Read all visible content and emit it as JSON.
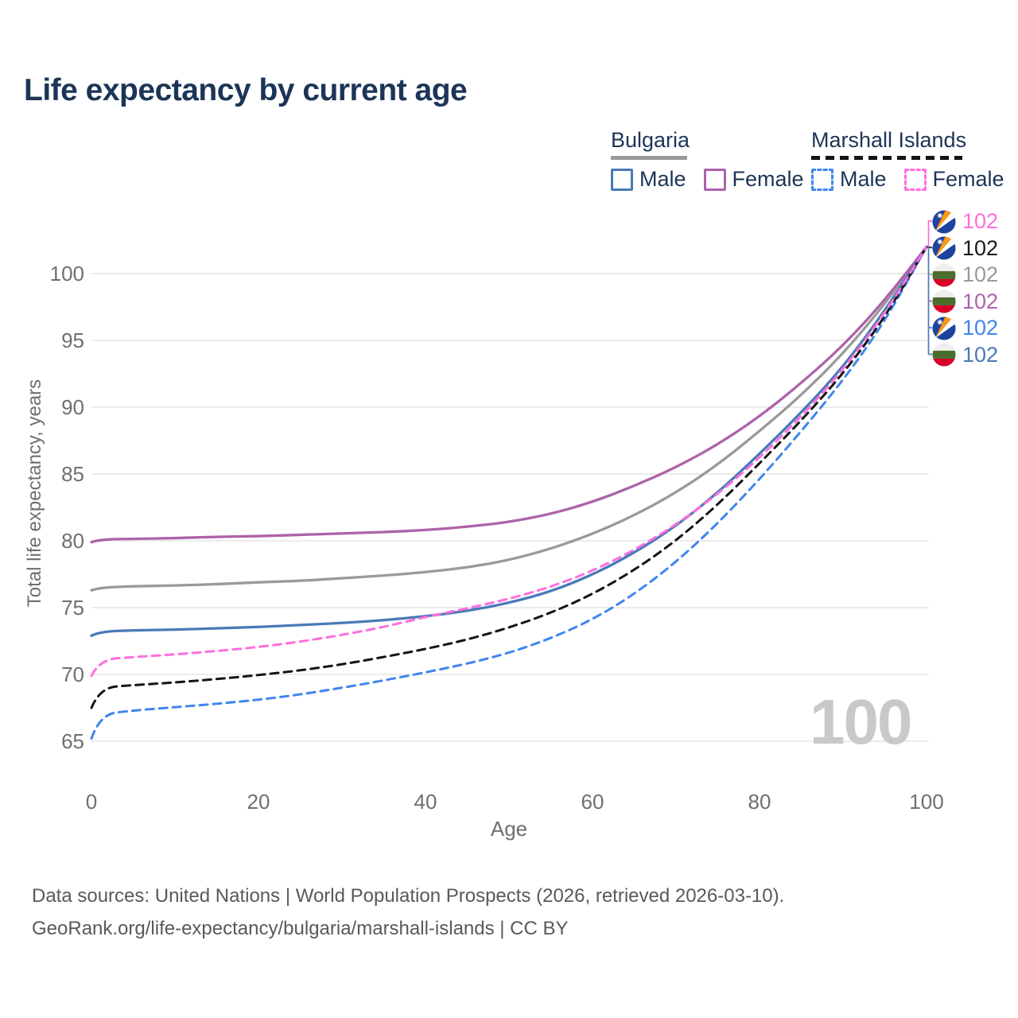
{
  "title": "Life expectancy by current age",
  "legend": {
    "groups": [
      {
        "title": "Bulgaria",
        "line_style": "solid",
        "line_color": "#9a9a9a",
        "items": [
          {
            "label": "Male",
            "color": "#4a7ab8",
            "dashed": false
          },
          {
            "label": "Female",
            "color": "#ae62aa",
            "dashed": false
          }
        ]
      },
      {
        "title": "Marshall Islands",
        "line_style": "dashed",
        "line_color": "#141414",
        "items": [
          {
            "label": "Male",
            "color": "#3f86ee",
            "dashed": true
          },
          {
            "label": "Female",
            "color": "#ff6ede",
            "dashed": true
          }
        ]
      }
    ]
  },
  "chart_data": {
    "type": "line",
    "title": "Life expectancy by current age",
    "xlabel": "Age",
    "ylabel": "Total life expectancy, years",
    "xlim": [
      0,
      100
    ],
    "ylim": [
      65,
      103
    ],
    "xticks": [
      0,
      20,
      40,
      60,
      80,
      100
    ],
    "yticks": [
      100,
      95,
      90,
      85,
      80,
      75,
      70,
      65
    ],
    "grid": "horizontal",
    "legend_position": "top-right",
    "x": [
      0,
      1,
      5,
      10,
      15,
      20,
      25,
      30,
      35,
      40,
      45,
      50,
      55,
      60,
      65,
      70,
      75,
      80,
      85,
      90,
      95,
      100
    ],
    "series": [
      {
        "name": "Bulgaria (both sexes)",
        "color": "#9a9a9a",
        "dash": false,
        "values": [
          76.3,
          76.5,
          76.6,
          76.65,
          76.75,
          76.9,
          77.0,
          77.2,
          77.4,
          77.65,
          78.0,
          78.55,
          79.4,
          80.5,
          81.9,
          83.6,
          85.7,
          88.2,
          90.9,
          94.0,
          97.7,
          102
        ]
      },
      {
        "name": "Bulgaria Female",
        "color": "#ae62aa",
        "dash": false,
        "values": [
          79.9,
          80.1,
          80.15,
          80.2,
          80.3,
          80.35,
          80.45,
          80.55,
          80.65,
          80.8,
          81.05,
          81.4,
          82.0,
          82.9,
          84.1,
          85.5,
          87.2,
          89.3,
          91.8,
          94.6,
          98.0,
          102
        ]
      },
      {
        "name": "Bulgaria Male",
        "color": "#4a7ab8",
        "dash": false,
        "values": [
          72.9,
          73.2,
          73.3,
          73.35,
          73.45,
          73.55,
          73.7,
          73.85,
          74.05,
          74.35,
          74.75,
          75.35,
          76.2,
          77.45,
          79.1,
          81.1,
          83.6,
          86.5,
          89.6,
          93.0,
          97.2,
          102
        ]
      },
      {
        "name": "Marshall Islands Male",
        "color": "#3f86ee",
        "dash": true,
        "values": [
          65.2,
          67.0,
          67.3,
          67.55,
          67.8,
          68.1,
          68.5,
          69.0,
          69.55,
          70.15,
          70.8,
          71.6,
          72.7,
          74.1,
          76.0,
          78.4,
          81.3,
          84.6,
          88.2,
          92.0,
          96.4,
          102
        ]
      },
      {
        "name": "Marshall Islands (both sexes)",
        "color": "#141414",
        "dash": true,
        "values": [
          67.5,
          69.0,
          69.2,
          69.4,
          69.65,
          69.95,
          70.3,
          70.75,
          71.3,
          71.9,
          72.6,
          73.5,
          74.6,
          76.0,
          77.8,
          80.0,
          82.7,
          85.8,
          89.0,
          92.5,
          96.7,
          102
        ]
      },
      {
        "name": "Marshall Islands Female",
        "color": "#ff6ede",
        "dash": true,
        "values": [
          69.9,
          71.1,
          71.3,
          71.5,
          71.75,
          72.05,
          72.45,
          72.95,
          73.55,
          74.3,
          74.95,
          75.65,
          76.55,
          77.75,
          79.3,
          81.2,
          83.5,
          86.2,
          89.3,
          92.8,
          97.0,
          102
        ]
      }
    ]
  },
  "end_labels": {
    "items": [
      {
        "value": "102",
        "color": "#ff6ede",
        "flag": "marshall-islands",
        "series": "Marshall Islands Female"
      },
      {
        "value": "102",
        "color": "#1a1a1a",
        "flag": "marshall-islands",
        "series": "Marshall Islands (both sexes)"
      },
      {
        "value": "102",
        "color": "#9a9a9a",
        "flag": "bulgaria",
        "series": "Bulgaria (both sexes)"
      },
      {
        "value": "102",
        "color": "#ae62aa",
        "flag": "bulgaria",
        "series": "Bulgaria Female"
      },
      {
        "value": "102",
        "color": "#3f86ee",
        "flag": "marshall-islands",
        "series": "Marshall Islands Male"
      },
      {
        "value": "102",
        "color": "#4a7ab8",
        "flag": "bulgaria",
        "series": "Bulgaria Male"
      }
    ]
  },
  "watermark": "100",
  "footer": {
    "line1": "Data sources: United Nations | World Population Prospects (2026, retrieved 2026-03-10).",
    "line2": "GeoRank.org/life-expectancy/bulgaria/marshall-islands | CC BY"
  },
  "palette": {
    "title_text": "#1c3557",
    "legend_text": "#1c3557",
    "axis_text": "#6f6f6f",
    "grid": "#e8e8e8",
    "watermark": "#c9c9c9",
    "footer_text": "#595959"
  }
}
